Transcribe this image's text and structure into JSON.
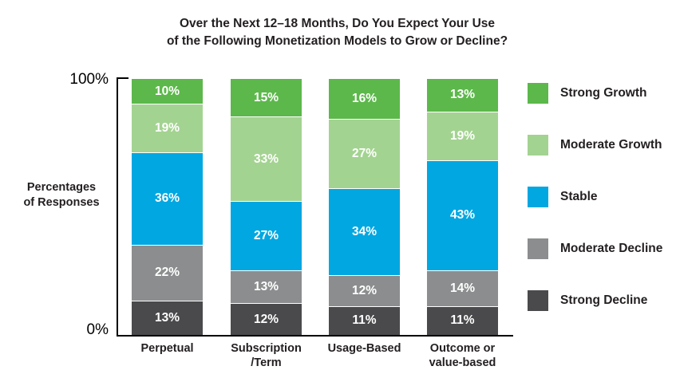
{
  "title": {
    "line1": "Over the Next 12–18 Months, Do You Expect Your Use",
    "line2": "of the Following Monetization Models to Grow or Decline?"
  },
  "y_axis": {
    "max_label": "100%",
    "min_label": "0%",
    "axis_title": "Percentages\nof Responses"
  },
  "chart_data": {
    "type": "bar",
    "stacked": true,
    "title": "Over the Next 12–18 Months, Do You Expect Your Use of the Following Monetization Models to Grow or Decline?",
    "ylabel": "Percentages of Responses",
    "ylim": [
      0,
      100
    ],
    "grid": false,
    "legend_position": "right",
    "value_label_format": "{v}%",
    "categories": [
      "Perpetual",
      "Subscription\n/Term",
      "Usage-Based",
      "Outcome or\nvalue-based"
    ],
    "series": [
      {
        "name": "Strong Decline",
        "color": "#4a4a4c",
        "values": [
          13,
          12,
          11,
          11
        ]
      },
      {
        "name": "Moderate Decline",
        "color": "#8b8d8e",
        "values": [
          22,
          13,
          12,
          14
        ]
      },
      {
        "name": "Stable",
        "color": "#00a7e1",
        "values": [
          36,
          27,
          34,
          43
        ]
      },
      {
        "name": "Moderate Growth",
        "color": "#a3d391",
        "values": [
          19,
          33,
          27,
          19
        ]
      },
      {
        "name": "Strong Growth",
        "color": "#5cb84b",
        "values": [
          10,
          15,
          16,
          13
        ]
      }
    ]
  },
  "colors": {
    "text": "#231f20",
    "axis": "#000000",
    "segment_divider": "#ffffff",
    "value_label": "#ffffff"
  }
}
